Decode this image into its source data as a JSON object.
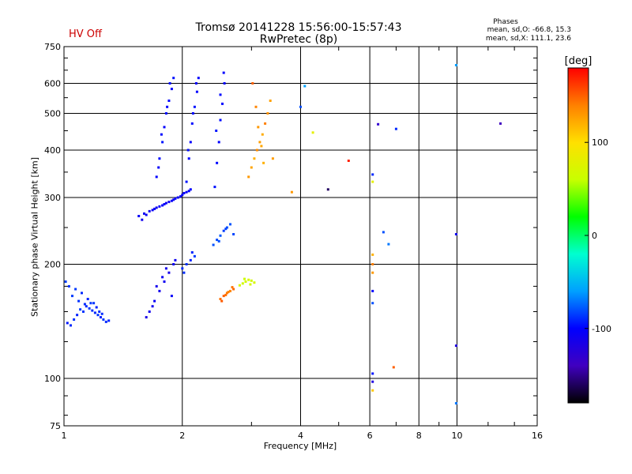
{
  "status_label": "HV Off",
  "phases": {
    "heading": "Phases",
    "line_o": "mean, sd,O: -66.8, 15.3",
    "line_x": "mean, sd,X: 111.1, 23.6"
  },
  "colorbar": {
    "unit_label": "[deg]",
    "range": [
      -180,
      180
    ],
    "ticks": [
      100,
      0,
      -100
    ],
    "tick_labels": [
      "100",
      "0",
      "-100"
    ],
    "colors": [
      "#ff0000",
      "#ff8000",
      "#ffe000",
      "#c8ff00",
      "#00ff00",
      "#00ffd0",
      "#00a0ff",
      "#0000ff",
      "#4000c0",
      "#000000"
    ]
  },
  "chart_data": {
    "type": "scatter",
    "title": "Tromsø 20141228 15:56:00-15:57:43",
    "subtitle": "RwPretec (8p)",
    "xlabel": "Frequency [MHz]",
    "ylabel": "Stationary phase Virtual Height [km]",
    "x_scale": "log",
    "y_scale": "log",
    "xlim": [
      1,
      16
    ],
    "ylim": [
      75,
      750
    ],
    "x_ticks": [
      1,
      2,
      4,
      6,
      8,
      10,
      16
    ],
    "x_tick_labels": [
      "1",
      "2",
      "4",
      "6",
      "8",
      "10",
      "16"
    ],
    "y_ticks": [
      75,
      100,
      200,
      300,
      400,
      500,
      600,
      750
    ],
    "y_tick_labels": [
      "75",
      "100",
      "200",
      "300",
      "400",
      "500",
      "600",
      "750"
    ],
    "grid": true,
    "color_value": "phase [deg]",
    "series": [
      {
        "x": [
          1.02,
          1.04,
          1.06,
          1.08,
          1.1,
          1.12,
          1.14,
          1.16,
          1.18,
          1.2,
          1.22,
          1.24,
          1.26,
          1.28,
          1.3,
          1.05,
          1.09,
          1.13,
          1.17,
          1.21,
          1.25,
          1.01,
          1.03,
          1.07,
          1.11,
          1.15,
          1.19,
          1.23
        ],
        "y": [
          140,
          138,
          143,
          147,
          152,
          150,
          155,
          153,
          151,
          149,
          147,
          145,
          143,
          141,
          142,
          165,
          160,
          157,
          158,
          154,
          148,
          180,
          175,
          172,
          168,
          162,
          158,
          150
        ],
        "phase": [
          -95,
          -90,
          -88,
          -92,
          -85,
          -87,
          -90,
          -86,
          -89,
          -91,
          -88,
          -93,
          -86,
          -90,
          -92,
          -85,
          -88,
          -90,
          -87,
          -92,
          -89,
          -84,
          -88,
          -86,
          -90,
          -91,
          -87,
          -89
        ]
      },
      {
        "x": [
          1.55,
          1.6,
          1.65,
          1.7,
          1.75,
          1.8,
          1.85,
          1.9,
          1.95,
          2.0,
          2.05,
          2.1,
          1.58,
          1.62,
          1.68,
          1.72,
          1.78,
          1.82,
          1.88,
          1.92,
          1.98,
          2.02,
          2.08
        ],
        "y": [
          268,
          272,
          276,
          280,
          284,
          288,
          292,
          296,
          300,
          305,
          310,
          315,
          262,
          270,
          278,
          282,
          286,
          290,
          294,
          298,
          302,
          308,
          312
        ],
        "phase": [
          -105,
          -108,
          -110,
          -106,
          -104,
          -102,
          -109,
          -107,
          -103,
          -101,
          -105,
          -100,
          -110,
          -106,
          -104,
          -108,
          -102,
          -107,
          -103,
          -101,
          -106,
          -104,
          -100
        ]
      },
      {
        "x": [
          1.72,
          1.75,
          1.78,
          1.8,
          1.82,
          1.85,
          1.88,
          1.9,
          1.74,
          1.77,
          1.83,
          1.86,
          2.05,
          2.08,
          2.1,
          2.12,
          2.15,
          2.18,
          2.2,
          2.07,
          2.13,
          2.17,
          2.42,
          2.45,
          2.48,
          2.5,
          2.53,
          2.56,
          2.44,
          2.5,
          2.55
        ],
        "y": [
          340,
          380,
          420,
          460,
          500,
          540,
          580,
          620,
          360,
          440,
          520,
          600,
          330,
          380,
          420,
          470,
          520,
          570,
          620,
          400,
          500,
          600,
          320,
          370,
          420,
          480,
          530,
          600,
          450,
          560,
          640
        ],
        "phase": [
          -100,
          -98,
          -95,
          -102,
          -97,
          -99,
          -101,
          -96,
          -104,
          -98,
          -100,
          -97,
          -95,
          -99,
          -102,
          -98,
          -96,
          -100,
          -101,
          -97,
          -99,
          -103,
          -96,
          -98,
          -100,
          -97,
          -99,
          -101,
          -95,
          -98,
          -100
        ]
      },
      {
        "x": [
          2.95,
          3.0,
          3.05,
          3.1,
          3.15,
          3.2,
          3.25,
          3.3,
          3.35,
          3.02,
          3.08,
          3.12,
          3.18,
          3.22,
          3.4
        ],
        "y": [
          340,
          360,
          380,
          400,
          420,
          440,
          470,
          500,
          540,
          600,
          520,
          460,
          410,
          370,
          380
        ],
        "phase": [
          130,
          125,
          120,
          135,
          128,
          122,
          140,
          132,
          126,
          150,
          138,
          130,
          124,
          120,
          128
        ]
      },
      {
        "x": [
          1.65,
          1.7,
          1.75,
          1.8,
          1.85,
          1.9,
          1.68,
          1.72,
          1.78,
          1.82,
          1.88,
          1.62,
          1.92
        ],
        "y": [
          150,
          160,
          170,
          180,
          190,
          200,
          155,
          175,
          185,
          195,
          165,
          145,
          205
        ],
        "phase": [
          -110,
          -105,
          -112,
          -108,
          -115,
          -106,
          -109,
          -111,
          -107,
          -113,
          -104,
          -116,
          -108
        ]
      },
      {
        "x": [
          2.5,
          2.55,
          2.6,
          2.65,
          2.7,
          2.52,
          2.58,
          2.62,
          2.68
        ],
        "y": [
          162,
          165,
          168,
          170,
          172,
          160,
          166,
          169,
          174
        ],
        "phase": [
          145,
          150,
          142,
          138,
          148,
          152,
          146,
          140,
          144
        ]
      },
      {
        "x": [
          2.8,
          2.85,
          2.9,
          2.95,
          3.0,
          3.05,
          2.88,
          2.98
        ],
        "y": [
          176,
          178,
          180,
          182,
          181,
          179,
          183,
          177
        ],
        "phase": [
          70,
          65,
          68,
          72,
          66,
          70,
          64,
          69
        ]
      },
      {
        "x": [
          2.4,
          2.45,
          2.5,
          2.55,
          2.6,
          2.65,
          2.7,
          2.48,
          2.58
        ],
        "y": [
          225,
          232,
          238,
          245,
          250,
          255,
          240,
          230,
          248
        ],
        "phase": [
          -80,
          -82,
          -78,
          -85,
          -81,
          -79,
          -83,
          -80,
          -84
        ]
      },
      {
        "x": [
          2.0,
          2.05,
          2.1,
          2.15,
          2.02,
          2.12
        ],
        "y": [
          195,
          200,
          205,
          210,
          190,
          215
        ],
        "phase": [
          -90,
          -88,
          -92,
          -86,
          -89,
          -91
        ]
      },
      {
        "x": [
          6.1,
          6.1,
          6.1,
          6.1,
          6.1,
          6.1,
          6.1,
          6.1,
          6.1,
          6.1
        ],
        "y": [
          93,
          98,
          103,
          158,
          170,
          190,
          200,
          212,
          330,
          345
        ],
        "phase": [
          110,
          -120,
          -95,
          -80,
          -100,
          130,
          140,
          120,
          80,
          -90
        ]
      },
      {
        "x": [
          6.5,
          6.7,
          6.9,
          6.3,
          7.0,
          5.3
        ],
        "y": [
          243,
          226,
          107,
          468,
          455,
          375
        ],
        "phase": [
          -80,
          -70,
          150,
          -130,
          -90,
          170
        ]
      },
      {
        "x": [
          9.95,
          9.95,
          9.95,
          9.95,
          12.9,
          4.7,
          4.3,
          4.0,
          4.1,
          3.8
        ],
        "y": [
          86,
          122,
          240,
          670,
          470,
          315,
          445,
          520,
          590,
          310
        ],
        "phase": [
          -70,
          -120,
          -110,
          -60,
          -140,
          -160,
          80,
          -80,
          -60,
          130
        ]
      }
    ]
  }
}
